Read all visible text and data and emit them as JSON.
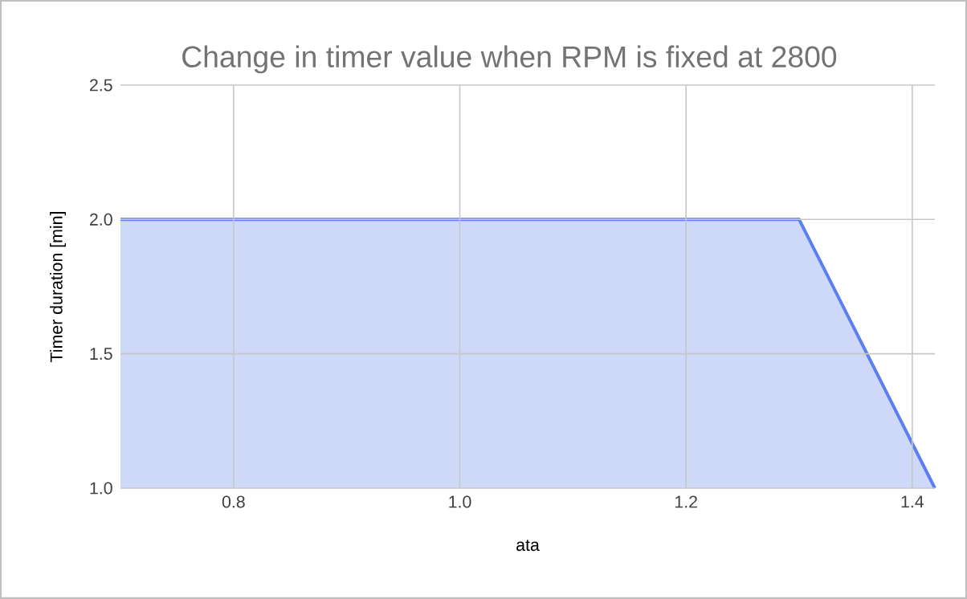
{
  "chart_data": {
    "type": "area",
    "title": "Change in timer value when RPM is fixed at 2800",
    "xlabel": "ata",
    "ylabel": "Timer duration [min]",
    "x": [
      0.7,
      1.3,
      1.42
    ],
    "values": [
      2.0,
      2.0,
      1.0
    ],
    "color": "#5b7ff0",
    "xlim": [
      0.7,
      1.42
    ],
    "ylim": [
      1.0,
      2.5
    ],
    "xticks": [
      0.8,
      {
        "value": 1.0,
        "label": "1.0"
      },
      1.2,
      1.4
    ],
    "yticks": [
      {
        "value": 1.0,
        "label": "1.0"
      },
      1.5,
      {
        "value": 2.0,
        "label": "2.0"
      },
      2.5
    ],
    "grid": true
  }
}
